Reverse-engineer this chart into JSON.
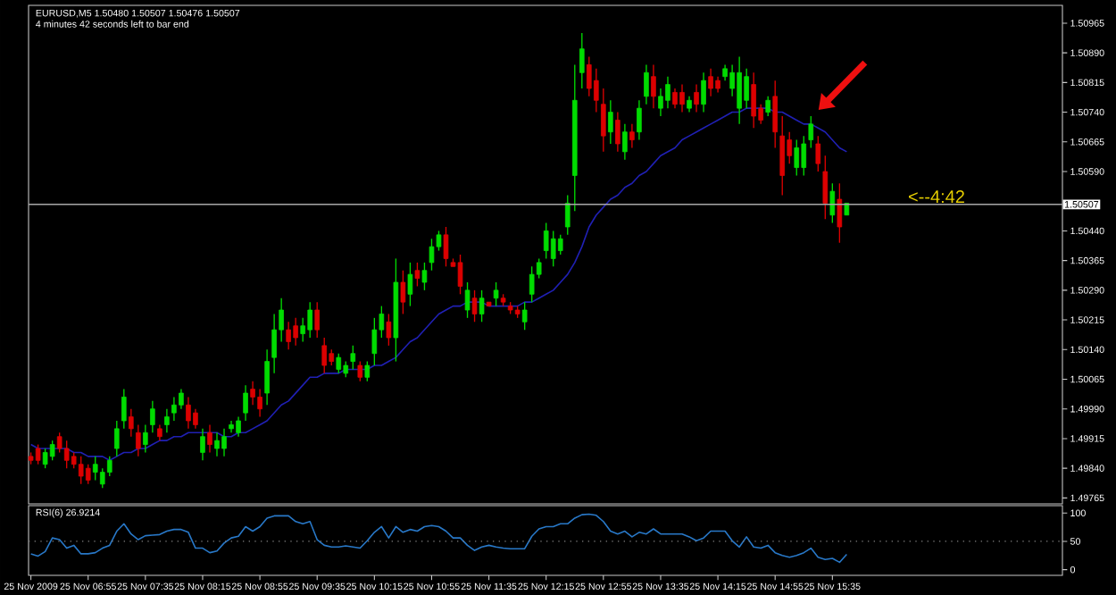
{
  "chart_data": [
    {
      "type": "candlestick",
      "title": "EURUSD,M5  1.50480 1.50507 1.50476 1.50507",
      "subtitle": "4 minutes 42 seconds left to bar end",
      "categories": [
        null,
        null,
        null,
        null,
        null,
        null,
        null,
        null,
        null,
        null,
        null,
        null,
        null,
        null,
        null,
        null,
        null,
        null,
        null,
        null,
        null,
        null,
        null,
        null,
        null,
        null,
        null,
        null,
        null,
        null,
        null,
        null,
        null,
        null,
        null,
        null,
        null,
        null,
        null,
        null,
        null,
        null,
        null,
        null,
        null,
        null,
        null,
        null,
        null,
        null,
        null,
        null,
        null,
        null,
        null,
        null,
        null,
        null,
        null,
        null,
        null,
        null,
        null,
        null,
        null,
        null,
        null,
        null,
        null,
        null,
        null,
        null,
        null,
        null,
        null,
        null,
        null,
        null,
        null,
        null,
        null,
        null,
        null,
        null,
        null,
        null,
        null,
        null,
        null,
        null,
        null,
        null,
        null,
        null,
        null,
        null,
        null,
        null,
        null,
        null,
        null,
        null,
        null,
        null,
        null,
        null,
        null,
        null,
        null,
        null,
        null,
        null,
        null,
        null,
        null
      ],
      "tick_labels": "y",
      "ohlc": [
        [
          1.4987,
          1.4988,
          1.4985,
          1.4986
        ],
        [
          1.4989,
          1.499,
          1.4985,
          1.4986
        ],
        [
          1.4985,
          1.4989,
          1.4984,
          1.4988
        ],
        [
          1.4987,
          1.4991,
          1.4986,
          1.499
        ],
        [
          1.4992,
          1.4993,
          1.4988,
          1.4989
        ],
        [
          1.4989,
          1.4991,
          1.4984,
          1.4986
        ],
        [
          1.4987,
          1.4988,
          1.4984,
          1.4985
        ],
        [
          1.4985,
          1.4987,
          1.498,
          1.4982
        ],
        [
          1.4984,
          1.4985,
          1.498,
          1.4981
        ],
        [
          1.4983,
          1.4987,
          1.4981,
          1.4985
        ],
        [
          1.498,
          1.4984,
          1.4979,
          1.4983
        ],
        [
          1.4983,
          1.4987,
          1.4982,
          1.4986
        ],
        [
          1.4989,
          1.4996,
          1.4987,
          1.4994
        ],
        [
          1.4996,
          1.5004,
          1.4994,
          1.5002
        ],
        [
          1.4997,
          1.4999,
          1.4992,
          1.4994
        ],
        [
          1.4993,
          1.4995,
          1.4987,
          1.4989
        ],
        [
          1.499,
          1.4995,
          1.4988,
          1.4993
        ],
        [
          1.4995,
          1.5001,
          1.4993,
          1.4999
        ],
        [
          1.4994,
          1.4995,
          1.4991,
          1.4992
        ],
        [
          1.4995,
          1.4999,
          1.4993,
          1.4997
        ],
        [
          1.4998,
          1.5002,
          1.4996,
          1.5
        ],
        [
          1.5,
          1.5004,
          1.4999,
          1.5003
        ],
        [
          1.5,
          1.5002,
          1.4994,
          1.4996
        ],
        [
          1.4998,
          1.4999,
          1.4994,
          1.4995
        ],
        [
          1.4988,
          1.4994,
          1.4986,
          1.4992
        ],
        [
          1.4993,
          1.4995,
          1.4988,
          1.499
        ],
        [
          1.4989,
          1.4993,
          1.4987,
          1.4991
        ],
        [
          1.4989,
          1.4994,
          1.4987,
          1.4992
        ],
        [
          1.4994,
          1.4996,
          1.4993,
          1.4995
        ],
        [
          1.4993,
          1.4997,
          1.4992,
          1.4996
        ],
        [
          1.4998,
          1.5005,
          1.4996,
          1.5003
        ],
        [
          1.5004,
          1.5006,
          1.5,
          1.5002
        ],
        [
          1.5002,
          1.5004,
          1.4997,
          1.4999
        ],
        [
          1.5003,
          1.5014,
          1.5,
          1.5011
        ],
        [
          1.5012,
          1.5023,
          1.5008,
          1.5019
        ],
        [
          1.5019,
          1.5027,
          1.5016,
          1.5024
        ],
        [
          1.5019,
          1.5021,
          1.5014,
          1.5016
        ],
        [
          1.502,
          1.5022,
          1.5015,
          1.5017
        ],
        [
          1.5018,
          1.5022,
          1.5016,
          1.502
        ],
        [
          1.5019,
          1.5026,
          1.5017,
          1.5024
        ],
        [
          1.5024,
          1.5026,
          1.5017,
          1.5019
        ],
        [
          1.5015,
          1.5017,
          1.5008,
          1.501
        ],
        [
          1.5013,
          1.5014,
          1.501,
          1.5011
        ],
        [
          1.5009,
          1.5013,
          1.5008,
          1.5012
        ],
        [
          1.5008,
          1.5011,
          1.5007,
          1.501
        ],
        [
          1.5011,
          1.5015,
          1.5009,
          1.5013
        ],
        [
          1.501,
          1.5011,
          1.5006,
          1.5007
        ],
        [
          1.5007,
          1.5011,
          1.5006,
          1.501
        ],
        [
          1.5013,
          1.5022,
          1.501,
          1.5019
        ],
        [
          1.5019,
          1.5025,
          1.5017,
          1.5023
        ],
        [
          1.5021,
          1.5023,
          1.5015,
          1.5017
        ],
        [
          1.5017,
          1.5037,
          1.5011,
          1.5031
        ],
        [
          1.5031,
          1.5034,
          1.5023,
          1.5026
        ],
        [
          1.5028,
          1.5036,
          1.5025,
          1.5033
        ],
        [
          1.5034,
          1.5036,
          1.503,
          1.5032
        ],
        [
          1.5031,
          1.5036,
          1.5029,
          1.5034
        ],
        [
          1.5036,
          1.5042,
          1.5034,
          1.504
        ],
        [
          1.504,
          1.5044,
          1.5039,
          1.5043
        ],
        [
          1.5043,
          1.5045,
          1.5035,
          1.5037
        ],
        [
          1.5036,
          1.5037,
          1.5035,
          1.5035
        ],
        [
          1.5036,
          1.5038,
          1.5028,
          1.503
        ],
        [
          1.5024,
          1.5031,
          1.5022,
          1.5029
        ],
        [
          1.5027,
          1.5029,
          1.5021,
          1.5023
        ],
        [
          1.5023,
          1.5029,
          1.5021,
          1.5027
        ],
        [
          1.5026,
          1.5026,
          1.5025,
          1.5025
        ],
        [
          1.5027,
          1.5031,
          1.5025,
          1.5029
        ],
        [
          1.5027,
          1.5028,
          1.5025,
          1.5026
        ],
        [
          1.5025,
          1.5026,
          1.5023,
          1.5024
        ],
        [
          1.5024,
          1.5025,
          1.5022,
          1.5023
        ],
        [
          1.5021,
          1.5026,
          1.5019,
          1.5024
        ],
        [
          1.5028,
          1.5035,
          1.5026,
          1.5033
        ],
        [
          1.5033,
          1.5037,
          1.5032,
          1.5036
        ],
        [
          1.5039,
          1.5046,
          1.5037,
          1.5044
        ],
        [
          1.5037,
          1.5044,
          1.5035,
          1.5042
        ],
        [
          1.5039,
          1.5043,
          1.5038,
          1.5042
        ],
        [
          1.5045,
          1.5053,
          1.5043,
          1.5051
        ],
        [
          1.5058,
          1.5086,
          1.5049,
          1.5077
        ],
        [
          1.5084,
          1.5094,
          1.508,
          1.509
        ],
        [
          1.5086,
          1.5088,
          1.5078,
          1.508
        ],
        [
          1.5082,
          1.5085,
          1.5074,
          1.5077
        ],
        [
          1.5076,
          1.508,
          1.5064,
          1.5068
        ],
        [
          1.5069,
          1.5077,
          1.5066,
          1.5074
        ],
        [
          1.5072,
          1.5074,
          1.5064,
          1.5066
        ],
        [
          1.5064,
          1.5071,
          1.5062,
          1.5069
        ],
        [
          1.5069,
          1.5071,
          1.5065,
          1.5067
        ],
        [
          1.5069,
          1.5077,
          1.5067,
          1.5075
        ],
        [
          1.5078,
          1.5086,
          1.5076,
          1.5084
        ],
        [
          1.5083,
          1.5086,
          1.5075,
          1.5078
        ],
        [
          1.5075,
          1.508,
          1.5073,
          1.5078
        ],
        [
          1.5077,
          1.5083,
          1.5075,
          1.5081
        ],
        [
          1.5079,
          1.508,
          1.5075,
          1.5076
        ],
        [
          1.5079,
          1.5081,
          1.5074,
          1.5076
        ],
        [
          1.5075,
          1.5078,
          1.5074,
          1.5077
        ],
        [
          1.5079,
          1.5081,
          1.5074,
          1.5076
        ],
        [
          1.5076,
          1.5084,
          1.5074,
          1.5082
        ],
        [
          1.5083,
          1.5085,
          1.5078,
          1.508
        ],
        [
          1.5082,
          1.5083,
          1.5079,
          1.508
        ],
        [
          1.5083,
          1.5086,
          1.5082,
          1.5085
        ],
        [
          1.508,
          1.5086,
          1.5078,
          1.5084
        ],
        [
          1.5075,
          1.5088,
          1.5071,
          1.5084
        ],
        [
          1.5077,
          1.5085,
          1.5075,
          1.5083
        ],
        [
          1.5081,
          1.5084,
          1.507,
          1.5073
        ],
        [
          1.5075,
          1.5076,
          1.5071,
          1.5072
        ],
        [
          1.5074,
          1.5078,
          1.5073,
          1.5077
        ],
        [
          1.5078,
          1.5082,
          1.5065,
          1.5069
        ],
        [
          1.5068,
          1.5073,
          1.5053,
          1.5058
        ],
        [
          1.5067,
          1.5069,
          1.5061,
          1.5063
        ],
        [
          1.506,
          1.5067,
          1.5058,
          1.5065
        ],
        [
          1.506,
          1.5068,
          1.5058,
          1.5066
        ],
        [
          1.5067,
          1.5073,
          1.5065,
          1.5071
        ],
        [
          1.5066,
          1.5068,
          1.5059,
          1.5061
        ],
        [
          1.5059,
          1.5063,
          1.5047,
          1.5051
        ],
        [
          1.5048,
          1.5056,
          1.5046,
          1.5054
        ],
        [
          1.5052,
          1.5056,
          1.5041,
          1.5045
        ],
        [
          1.5048,
          1.5051,
          1.5048,
          1.5051
        ]
      ],
      "colors": [
        "#dc0000",
        "#dc0000",
        "#00dc00",
        "#00dc00",
        "#dc0000",
        "#dc0000",
        "#dc0000",
        "#dc0000",
        "#dc0000",
        "#00dc00",
        "#00dc00",
        "#00dc00",
        "#00dc00",
        "#00dc00",
        "#dc0000",
        "#dc0000",
        "#00dc00",
        "#00dc00",
        "#dc0000",
        "#00dc00",
        "#00dc00",
        "#00dc00",
        "#dc0000",
        "#dc0000",
        "#00dc00",
        "#dc0000",
        "#00dc00",
        "#00dc00",
        "#00dc00",
        "#00dc00",
        "#00dc00",
        "#dc0000",
        "#dc0000",
        "#00dc00",
        "#00dc00",
        "#00dc00",
        "#dc0000",
        "#dc0000",
        "#00dc00",
        "#00dc00",
        "#dc0000",
        "#dc0000",
        "#dc0000",
        "#00dc00",
        "#00dc00",
        "#00dc00",
        "#dc0000",
        "#00dc00",
        "#00dc00",
        "#00dc00",
        "#dc0000",
        "#00dc00",
        "#dc0000",
        "#00dc00",
        "#dc0000",
        "#00dc00",
        "#00dc00",
        "#00dc00",
        "#dc0000",
        "#dc0000",
        "#dc0000",
        "#00dc00",
        "#dc0000",
        "#00dc00",
        "#dc0000",
        "#00dc00",
        "#dc0000",
        "#dc0000",
        "#dc0000",
        "#00dc00",
        "#00dc00",
        "#00dc00",
        "#00dc00",
        "#00dc00",
        "#00dc00",
        "#00dc00",
        "#00dc00",
        "#00dc00",
        "#dc0000",
        "#dc0000",
        "#dc0000",
        "#00dc00",
        "#dc0000",
        "#00dc00",
        "#dc0000",
        "#00dc00",
        "#00dc00",
        "#dc0000",
        "#00dc00",
        "#00dc00",
        "#dc0000",
        "#dc0000",
        "#00dc00",
        "#dc0000",
        "#00dc00",
        "#dc0000",
        "#dc0000",
        "#00dc00",
        "#00dc00",
        "#00dc00",
        "#00dc00",
        "#dc0000",
        "#dc0000",
        "#00dc00",
        "#dc0000",
        "#dc0000",
        "#dc0000",
        "#00dc00",
        "#00dc00",
        "#00dc00",
        "#dc0000",
        "#dc0000",
        "#00dc00",
        "#dc0000",
        "#00dc00"
      ],
      "series": [
        {
          "type": "line",
          "color": "#2020b4",
          "values": [
            1.499,
            1.4989,
            1.4989,
            1.4989,
            1.4989,
            1.4989,
            1.4988,
            1.4988,
            1.4987,
            1.4987,
            1.4987,
            1.4986,
            1.4987,
            1.4988,
            1.4988,
            1.4989,
            1.4989,
            1.499,
            1.4991,
            1.4991,
            1.4992,
            1.4992,
            1.4993,
            1.4993,
            1.4993,
            1.4993,
            1.4993,
            1.4992,
            1.4992,
            1.4993,
            1.4993,
            1.4994,
            1.4995,
            1.4996,
            1.4998,
            1.5,
            1.5001,
            1.5003,
            1.5005,
            1.5007,
            1.5007,
            1.5008,
            1.5008,
            1.5008,
            1.5009,
            1.5009,
            1.5009,
            1.5009,
            1.501,
            1.501,
            1.5011,
            1.5012,
            1.5014,
            1.5016,
            1.5017,
            1.5019,
            1.5021,
            1.5023,
            1.5024,
            1.5025,
            1.5025,
            1.5026,
            1.5026,
            1.5026,
            1.5025,
            1.5025,
            1.5025,
            1.5025,
            1.5025,
            1.5026,
            1.5026,
            1.5027,
            1.5028,
            1.5029,
            1.5031,
            1.5033,
            1.5036,
            1.504,
            1.5045,
            1.5048,
            1.505,
            1.5052,
            1.5053,
            1.5055,
            1.5056,
            1.5058,
            1.5059,
            1.5061,
            1.5063,
            1.5064,
            1.5065,
            1.5067,
            1.5068,
            1.5069,
            1.507,
            1.5071,
            1.5072,
            1.5073,
            1.5074,
            1.5074,
            1.5075,
            1.5075,
            1.5075,
            1.5075,
            1.5074,
            1.5074,
            1.5073,
            1.5072,
            1.5071,
            1.5071,
            1.507,
            1.5069,
            1.5067,
            1.5065,
            1.5064
          ]
        }
      ],
      "ylim": [
        1.4975,
        1.5101
      ],
      "yticks": [
        {
          "value": 1.50965,
          "label": "1.50965"
        },
        {
          "value": 1.5089,
          "label": "1.50890"
        },
        {
          "value": 1.50815,
          "label": "1.50815"
        },
        {
          "value": 1.5074,
          "label": "1.50740"
        },
        {
          "value": 1.50665,
          "label": "1.50665"
        },
        {
          "value": 1.5059,
          "label": "1.50590"
        },
        {
          "value": 1.5044,
          "label": "1.50440"
        },
        {
          "value": 1.50365,
          "label": "1.50365"
        },
        {
          "value": 1.5029,
          "label": "1.50290"
        },
        {
          "value": 1.50215,
          "label": "1.50215"
        },
        {
          "value": 1.5014,
          "label": "1.50140"
        },
        {
          "value": 1.50065,
          "label": "1.50065"
        },
        {
          "value": 1.4999,
          "label": "1.49990"
        },
        {
          "value": 1.49915,
          "label": "1.49915"
        },
        {
          "value": 1.4984,
          "label": "1.49840"
        },
        {
          "value": 1.49765,
          "label": "1.49765"
        }
      ],
      "ref_lines": [
        {
          "axis": "y",
          "value": 1.50507,
          "label": "1.50507",
          "color": "#a8a8a8"
        }
      ],
      "annotations": [
        {
          "text": "<--4:42",
          "y": 1.50507
        }
      ]
    },
    {
      "type": "line",
      "title": "RSI(6) 26.9214",
      "categories": [
        "25 Nov 2009",
        null,
        null,
        null,
        null,
        null,
        null,
        null,
        "25 Nov 06:55",
        null,
        null,
        null,
        null,
        null,
        null,
        null,
        "25 Nov 07:35",
        null,
        null,
        null,
        null,
        null,
        null,
        null,
        "25 Nov 08:15",
        null,
        null,
        null,
        null,
        null,
        null,
        null,
        "25 Nov 08:55",
        null,
        null,
        null,
        null,
        null,
        null,
        null,
        "25 Nov 09:35",
        null,
        null,
        null,
        null,
        null,
        null,
        null,
        "25 Nov 10:15",
        null,
        null,
        null,
        null,
        null,
        null,
        null,
        "25 Nov 10:55",
        null,
        null,
        null,
        null,
        null,
        null,
        null,
        "25 Nov 11:35",
        null,
        null,
        null,
        null,
        null,
        null,
        null,
        "25 Nov 12:15",
        null,
        null,
        null,
        null,
        null,
        null,
        null,
        "25 Nov 12:55",
        null,
        null,
        null,
        null,
        null,
        null,
        null,
        "25 Nov 13:35",
        null,
        null,
        null,
        null,
        null,
        null,
        null,
        "25 Nov 14:15",
        null,
        null,
        null,
        null,
        null,
        null,
        null,
        "25 Nov 14:55",
        null,
        null,
        null,
        null,
        null,
        null,
        null,
        "25 Nov 15:35",
        null,
        null
      ],
      "color": "#2878c8",
      "values": [
        28,
        24,
        32,
        56,
        53,
        38,
        43,
        28,
        28,
        30,
        38,
        43,
        68,
        81,
        63,
        53,
        60,
        61,
        62,
        68,
        71,
        71,
        66,
        38,
        38,
        30,
        33,
        47,
        56,
        59,
        76,
        68,
        76,
        91,
        95,
        95,
        95,
        85,
        81,
        85,
        53,
        43,
        40,
        40,
        42,
        40,
        38,
        51,
        66,
        76,
        56,
        76,
        66,
        71,
        68,
        76,
        78,
        76,
        68,
        56,
        56,
        43,
        34,
        40,
        43,
        40,
        38,
        37,
        37,
        37,
        59,
        72,
        76,
        76,
        81,
        81,
        91,
        97,
        98,
        96,
        85,
        68,
        63,
        68,
        58,
        66,
        63,
        72,
        63,
        63,
        63,
        63,
        58,
        51,
        56,
        68,
        68,
        68,
        51,
        40,
        58,
        40,
        38,
        43,
        30,
        25,
        22,
        25,
        30,
        38,
        22,
        18,
        20,
        13,
        27
      ],
      "ylim": [
        -10,
        113
      ],
      "yticks": [
        0,
        50,
        100
      ],
      "ref_lines": [
        {
          "axis": "y",
          "value": 50,
          "color": "#808080",
          "line_style": "dotted"
        }
      ]
    }
  ]
}
